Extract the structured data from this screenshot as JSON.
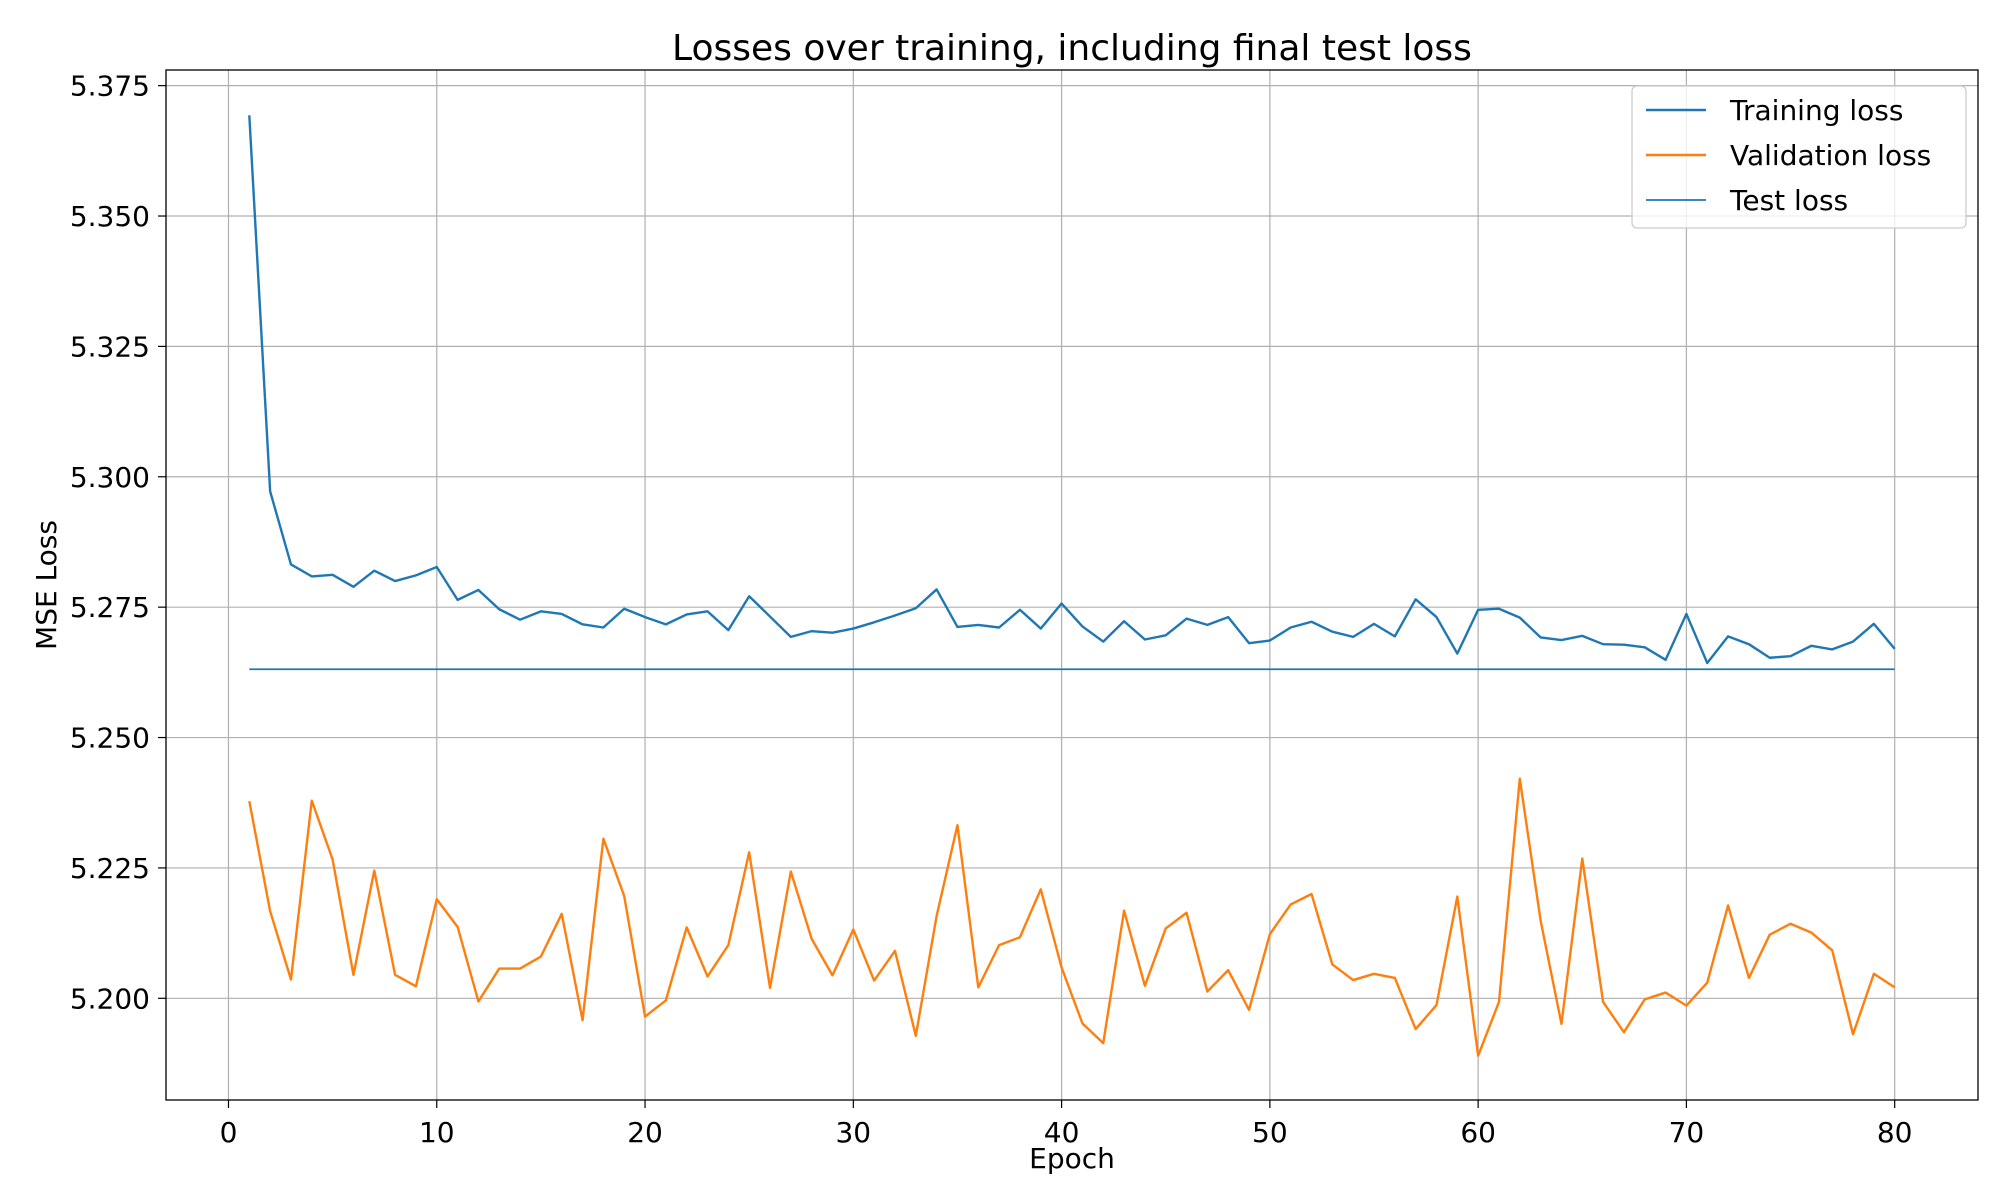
{
  "chart_data": {
    "type": "line",
    "title": "Losses over training, including final test loss",
    "xlabel": "Epoch",
    "ylabel": "MSE Loss",
    "xlim": [
      -3,
      84
    ],
    "ylim": [
      5.1805,
      5.378
    ],
    "x_ticks": [
      0,
      10,
      20,
      30,
      40,
      50,
      60,
      70,
      80
    ],
    "y_ticks": [
      5.2,
      5.225,
      5.25,
      5.275,
      5.3,
      5.325,
      5.35,
      5.375
    ],
    "y_tick_labels": [
      "5.200",
      "5.225",
      "5.250",
      "5.275",
      "5.300",
      "5.325",
      "5.350",
      "5.375"
    ],
    "grid": true,
    "legend_position": "top-right",
    "colors": {
      "training": "#1f77b4",
      "validation": "#ff7f0e",
      "test": "#1f77b4"
    },
    "x": [
      1,
      2,
      3,
      4,
      5,
      6,
      7,
      8,
      9,
      10,
      11,
      12,
      13,
      14,
      15,
      16,
      17,
      18,
      19,
      20,
      21,
      22,
      23,
      24,
      25,
      26,
      27,
      28,
      29,
      30,
      31,
      32,
      33,
      34,
      35,
      36,
      37,
      38,
      39,
      40,
      41,
      42,
      43,
      44,
      45,
      46,
      47,
      48,
      49,
      50,
      51,
      52,
      53,
      54,
      55,
      56,
      57,
      58,
      59,
      60,
      61,
      62,
      63,
      64,
      65,
      66,
      67,
      68,
      69,
      70,
      71,
      72,
      73,
      74,
      75,
      76,
      77,
      78,
      79,
      80
    ],
    "series": [
      {
        "name": "Training loss",
        "values": [
          5.3693,
          5.2972,
          5.2832,
          5.2809,
          5.2812,
          5.2789,
          5.282,
          5.28,
          5.2811,
          5.2827,
          5.2764,
          5.2783,
          5.2746,
          5.2726,
          5.2742,
          5.2737,
          5.2717,
          5.2711,
          5.2747,
          5.2731,
          5.2717,
          5.2736,
          5.2742,
          5.2706,
          5.2771,
          5.2732,
          5.2693,
          5.2704,
          5.2701,
          5.2709,
          5.2721,
          5.2734,
          5.2748,
          5.2784,
          5.2712,
          5.2716,
          5.2711,
          5.2745,
          5.2709,
          5.2757,
          5.2713,
          5.2684,
          5.2723,
          5.2688,
          5.2696,
          5.2728,
          5.2716,
          5.2731,
          5.2681,
          5.2686,
          5.2711,
          5.2722,
          5.2703,
          5.2693,
          5.2718,
          5.2694,
          5.2765,
          5.2731,
          5.2661,
          5.2745,
          5.2747,
          5.273,
          5.2692,
          5.2687,
          5.2695,
          5.2679,
          5.2678,
          5.2673,
          5.2649,
          5.2737,
          5.2643,
          5.2694,
          5.2679,
          5.2653,
          5.2656,
          5.2676,
          5.2669,
          5.2684,
          5.2718,
          5.267
        ]
      },
      {
        "name": "Validation loss",
        "values": [
          5.2378,
          5.2167,
          5.2036,
          5.2379,
          5.2266,
          5.2045,
          5.2245,
          5.2045,
          5.2023,
          5.219,
          5.2137,
          5.1994,
          5.2057,
          5.2057,
          5.208,
          5.2162,
          5.1958,
          5.2306,
          5.2196,
          5.1965,
          5.1996,
          5.2136,
          5.2042,
          5.2102,
          5.228,
          5.202,
          5.2243,
          5.2114,
          5.2044,
          5.2132,
          5.2034,
          5.2091,
          5.1928,
          5.2158,
          5.2332,
          5.2021,
          5.2102,
          5.2117,
          5.2209,
          5.2059,
          5.1952,
          5.1914,
          5.2168,
          5.2024,
          5.2134,
          5.2164,
          5.2013,
          5.2054,
          5.1978,
          5.2123,
          5.218,
          5.22,
          5.2065,
          5.2035,
          5.2047,
          5.2039,
          5.1941,
          5.1987,
          5.2195,
          5.189,
          5.1993,
          5.2421,
          5.2149,
          5.1951,
          5.2268,
          5.1993,
          5.1935,
          5.1998,
          5.2011,
          5.1986,
          5.203,
          5.2178,
          5.2039,
          5.2122,
          5.2143,
          5.2126,
          5.2092,
          5.1931,
          5.2047,
          5.2021
        ]
      }
    ],
    "hlines": [
      {
        "name": "Test loss",
        "y": 5.2631,
        "xmin": 1,
        "xmax": 80
      }
    ]
  }
}
